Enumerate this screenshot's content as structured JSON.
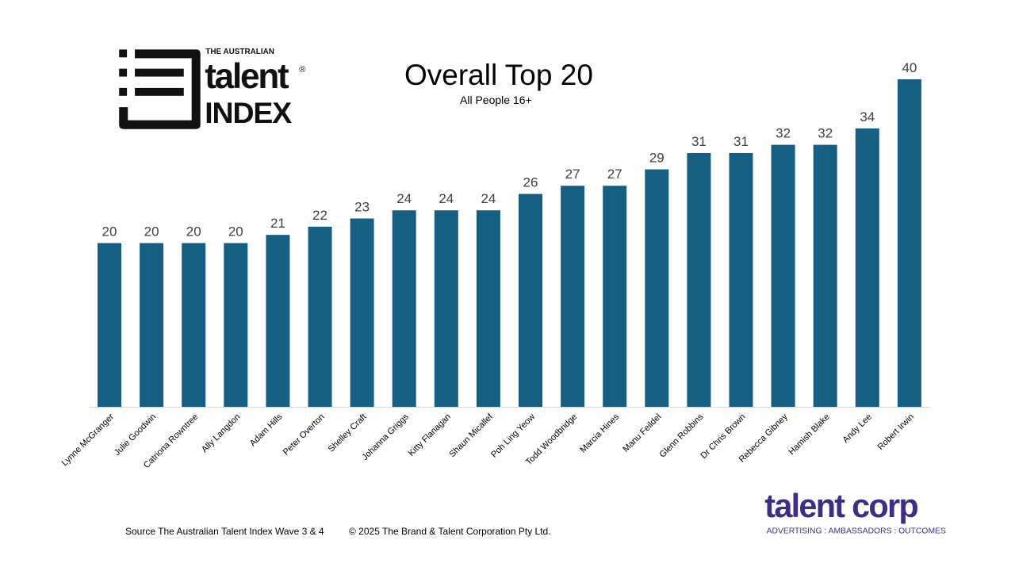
{
  "logos": {
    "talent_index": {
      "line1": "THE AUSTRALIAN",
      "line2": "talent",
      "line3": "INDEX",
      "mark": "®"
    },
    "talent_corp": {
      "name": "talent corp",
      "tagline": "ADVERTISING : AMBASSADORS : OUTCOMES",
      "color": "#3f2d85"
    }
  },
  "footer": {
    "source": "Source The Australian Talent Index Wave 3 & 4",
    "copyright": "© 2025 The Brand & Talent Corporation Pty Ltd."
  },
  "chart_data": {
    "type": "bar",
    "title": "Overall Top 20",
    "subtitle": "All People 16+",
    "xlabel": "",
    "ylabel": "",
    "ylim": [
      0,
      40
    ],
    "grid": false,
    "bar_color": "#175f82",
    "categories": [
      "Lynne McGranger",
      "Julie Goodwin",
      "Catriona Rowntree",
      "Ally Langdon",
      "Adam Hills",
      "Peter Overton",
      "Shelley Craft",
      "Johanna Griggs",
      "Kitty Flanagan",
      "Shaun Micallef",
      "Poh Ling Yeow",
      "Todd Woodbridge",
      "Marcia Hines",
      "Manu Feildel",
      "Glenn Robbins",
      "Dr Chris Brown",
      "Rebecca Gibney",
      "Hamish Blake",
      "Andy Lee",
      "Robert Irwin"
    ],
    "values": [
      20,
      20,
      20,
      20,
      21,
      22,
      23,
      24,
      24,
      24,
      26,
      27,
      27,
      29,
      31,
      31,
      32,
      32,
      34,
      40
    ]
  }
}
